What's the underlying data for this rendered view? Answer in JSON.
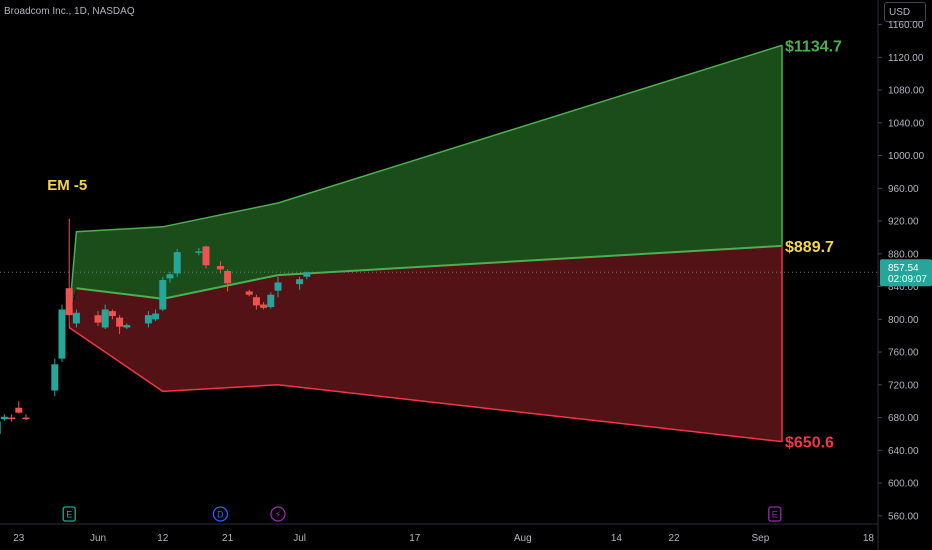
{
  "header": {
    "symbol": "Broadcom Inc., 1D, NASDAQ",
    "currency": "USD"
  },
  "price_tag": {
    "price": "857.54",
    "countdown": "02:09:07"
  },
  "colors": {
    "background": "#000000",
    "up": "#26a69a",
    "down": "#ef5350",
    "green_zone": "#1e5a1e",
    "green_line": "#4caf50",
    "red_zone": "#5c1418",
    "red_line": "#f23645",
    "label_green": "#4caf50",
    "label_yellow": "#f5d742",
    "label_red": "#f23645",
    "axis_text": "#b2b5be"
  },
  "event_markers": [
    {
      "icon": "earnings-icon",
      "glyph": "E",
      "date": "2024-05-30",
      "color": "#26a69a"
    },
    {
      "icon": "dividend-icon",
      "glyph": "D",
      "date": "2024-06-20",
      "color": "#2962ff"
    },
    {
      "icon": "split-icon",
      "glyph": "⚡",
      "date": "2024-06-28",
      "color": "#9c27b0"
    },
    {
      "icon": "earnings-icon",
      "glyph": "E",
      "date": "2024-09-05",
      "color": "#9c27b0"
    }
  ],
  "chart_data": {
    "type": "candlestick",
    "title": "",
    "ylim": [
      550,
      1190
    ],
    "y_ticks": [
      560,
      600,
      640,
      680,
      720,
      760,
      800,
      840,
      880,
      920,
      960,
      1000,
      1040,
      1080,
      1120,
      1160
    ],
    "x_ticks": [
      {
        "label": "23",
        "date": "2024-05-23"
      },
      {
        "label": "Jun",
        "date": "2024-06-03"
      },
      {
        "label": "12",
        "date": "2024-06-12"
      },
      {
        "label": "21",
        "date": "2024-06-21"
      },
      {
        "label": "Jul",
        "date": "2024-07-01"
      },
      {
        "label": "17",
        "date": "2024-07-17"
      },
      {
        "label": "Aug",
        "date": "2024-08-01"
      },
      {
        "label": "14",
        "date": "2024-08-14"
      },
      {
        "label": "22",
        "date": "2024-08-22"
      },
      {
        "label": "Sep",
        "date": "2024-09-03"
      },
      {
        "label": "18",
        "date": "2024-09-18"
      }
    ],
    "candles": [
      {
        "date": "2024-05-20",
        "o": 660,
        "h": 678,
        "l": 655,
        "c": 675
      },
      {
        "date": "2024-05-21",
        "o": 678,
        "h": 684,
        "l": 676,
        "c": 681
      },
      {
        "date": "2024-05-22",
        "o": 680,
        "h": 684,
        "l": 675,
        "c": 678
      },
      {
        "date": "2024-05-23",
        "o": 692,
        "h": 700,
        "l": 685,
        "c": 686
      },
      {
        "date": "2024-05-24",
        "o": 680,
        "h": 684,
        "l": 677,
        "c": 678
      },
      {
        "date": "2024-05-28",
        "o": 713,
        "h": 752,
        "l": 706,
        "c": 745
      },
      {
        "date": "2024-05-29",
        "o": 752,
        "h": 818,
        "l": 748,
        "c": 812
      },
      {
        "date": "2024-05-30",
        "o": 838,
        "h": 923,
        "l": 790,
        "c": 805
      },
      {
        "date": "2024-05-31",
        "o": 795,
        "h": 812,
        "l": 790,
        "c": 808
      },
      {
        "date": "2024-06-03",
        "o": 805,
        "h": 810,
        "l": 792,
        "c": 796
      },
      {
        "date": "2024-06-04",
        "o": 790,
        "h": 818,
        "l": 788,
        "c": 812
      },
      {
        "date": "2024-06-05",
        "o": 810,
        "h": 812,
        "l": 800,
        "c": 804
      },
      {
        "date": "2024-06-06",
        "o": 802,
        "h": 805,
        "l": 782,
        "c": 791
      },
      {
        "date": "2024-06-07",
        "o": 790,
        "h": 795,
        "l": 788,
        "c": 793
      },
      {
        "date": "2024-06-10",
        "o": 795,
        "h": 810,
        "l": 790,
        "c": 805
      },
      {
        "date": "2024-06-11",
        "o": 800,
        "h": 812,
        "l": 798,
        "c": 807
      },
      {
        "date": "2024-06-12",
        "o": 812,
        "h": 852,
        "l": 810,
        "c": 848
      },
      {
        "date": "2024-06-13",
        "o": 850,
        "h": 858,
        "l": 845,
        "c": 855
      },
      {
        "date": "2024-06-14",
        "o": 856,
        "h": 886,
        "l": 852,
        "c": 882
      },
      {
        "date": "2024-06-17",
        "o": 882,
        "h": 887,
        "l": 878,
        "c": 883
      },
      {
        "date": "2024-06-18",
        "o": 889,
        "h": 890,
        "l": 862,
        "c": 866
      },
      {
        "date": "2024-06-20",
        "o": 865,
        "h": 871,
        "l": 856,
        "c": 861
      },
      {
        "date": "2024-06-21",
        "o": 859,
        "h": 861,
        "l": 834,
        "c": 844
      },
      {
        "date": "2024-06-24",
        "o": 834,
        "h": 836,
        "l": 828,
        "c": 830
      },
      {
        "date": "2024-06-25",
        "o": 827,
        "h": 830,
        "l": 812,
        "c": 817
      },
      {
        "date": "2024-06-26",
        "o": 818,
        "h": 821,
        "l": 812,
        "c": 814
      },
      {
        "date": "2024-06-27",
        "o": 815,
        "h": 833,
        "l": 813,
        "c": 830
      },
      {
        "date": "2024-06-28",
        "o": 835,
        "h": 852,
        "l": 827,
        "c": 845
      },
      {
        "date": "2024-07-01",
        "o": 843,
        "h": 852,
        "l": 836,
        "c": 849
      },
      {
        "date": "2024-07-02",
        "o": 852,
        "h": 858,
        "l": 849,
        "c": 857.54
      }
    ],
    "bands": {
      "start": {
        "date": "2024-05-30",
        "value": 790
      },
      "upper": [
        {
          "date": "2024-05-30",
          "value": 806
        },
        {
          "date": "2024-05-31",
          "value": 907
        },
        {
          "date": "2024-06-12",
          "value": 913
        },
        {
          "date": "2024-06-28",
          "value": 942
        },
        {
          "date": "2024-09-06",
          "value": 1134.7
        }
      ],
      "mid": [
        {
          "date": "2024-05-31",
          "value": 838
        },
        {
          "date": "2024-06-12",
          "value": 825
        },
        {
          "date": "2024-06-28",
          "value": 854
        },
        {
          "date": "2024-09-06",
          "value": 889.7
        }
      ],
      "lower": [
        {
          "date": "2024-05-30",
          "value": 790
        },
        {
          "date": "2024-06-12",
          "value": 712
        },
        {
          "date": "2024-06-28",
          "value": 720
        },
        {
          "date": "2024-09-06",
          "value": 650.6
        }
      ]
    },
    "annotations": {
      "em_label": {
        "text": "EM -5",
        "date": "2024-05-30",
        "value": 958
      },
      "upper_target": "$1134.7",
      "mid_target": "$889.7",
      "lower_target": "$650.6"
    },
    "last_price_line": 857.54,
    "grid": false
  }
}
